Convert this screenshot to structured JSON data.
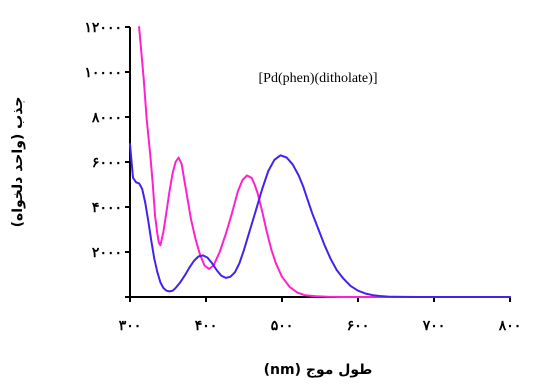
{
  "chart_data": {
    "type": "line",
    "title": "",
    "annotation": "[Pd(phen)(ditholate)]",
    "xlabel": "طول موج (nm)",
    "ylabel": "جذب (واحد دلخواه)",
    "xlim": [
      300,
      800
    ],
    "ylim": [
      0,
      12000
    ],
    "x_ticks": [
      300,
      400,
      500,
      600,
      700,
      800
    ],
    "x_tick_labels": [
      "۳۰۰",
      "۴۰۰",
      "۵۰۰",
      "۶۰۰",
      "۷۰۰",
      "۸۰۰"
    ],
    "y_ticks": [
      0,
      2000,
      4000,
      6000,
      8000,
      10000,
      12000
    ],
    "y_tick_labels": [
      "",
      "۲۰۰۰",
      "۴۰۰۰",
      "۶۰۰۰",
      "۸۰۰۰",
      "۱۰۰۰۰",
      "۱۲۰۰۰"
    ],
    "grid": false,
    "legend": false,
    "series": [
      {
        "color": "#ff22cc",
        "x": [
          312,
          318,
          322,
          327,
          330,
          333,
          336,
          338,
          340,
          344,
          348,
          352,
          356,
          360,
          364,
          368,
          372,
          376,
          380,
          386,
          392,
          398,
          404,
          410,
          418,
          426,
          434,
          442,
          448,
          454,
          460,
          464,
          468,
          474,
          480,
          486,
          492,
          500,
          510,
          520,
          530,
          545,
          560,
          580,
          600,
          650,
          700,
          750,
          800
        ],
        "y": [
          12000,
          9700,
          7900,
          6200,
          5000,
          3600,
          2800,
          2400,
          2300,
          2900,
          3800,
          4700,
          5500,
          6000,
          6200,
          5900,
          5100,
          4300,
          3500,
          2600,
          1900,
          1400,
          1250,
          1400,
          2000,
          2800,
          3700,
          4700,
          5200,
          5400,
          5300,
          5000,
          4600,
          3800,
          2900,
          2100,
          1500,
          900,
          450,
          200,
          80,
          30,
          10,
          0,
          0,
          0,
          0,
          0,
          0
        ]
      },
      {
        "color": "#4422ee",
        "x": [
          300,
          304,
          308,
          312,
          316,
          320,
          324,
          328,
          332,
          336,
          340,
          344,
          348,
          352,
          356,
          360,
          366,
          372,
          378,
          384,
          390,
          396,
          402,
          408,
          414,
          420,
          426,
          432,
          438,
          444,
          450,
          458,
          466,
          474,
          482,
          490,
          498,
          506,
          514,
          522,
          528,
          534,
          540,
          548,
          556,
          564,
          572,
          580,
          590,
          600,
          610,
          620,
          630,
          640,
          650,
          660,
          680,
          700,
          750,
          800
        ],
        "y": [
          6800,
          5300,
          5100,
          5050,
          4800,
          4200,
          3400,
          2500,
          1700,
          1100,
          650,
          400,
          280,
          250,
          280,
          400,
          650,
          950,
          1300,
          1600,
          1800,
          1850,
          1750,
          1500,
          1200,
          950,
          850,
          900,
          1100,
          1500,
          2100,
          3000,
          3900,
          4800,
          5600,
          6100,
          6300,
          6200,
          5900,
          5400,
          4900,
          4300,
          3700,
          3000,
          2300,
          1700,
          1200,
          850,
          500,
          280,
          150,
          80,
          40,
          20,
          10,
          5,
          0,
          0,
          0,
          0
        ]
      }
    ]
  }
}
